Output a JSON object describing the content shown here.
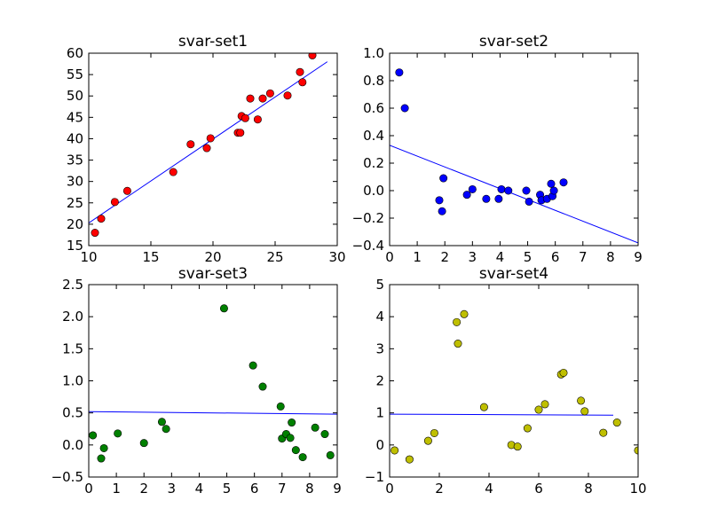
{
  "figure": {
    "background": "#ffffff",
    "line_color": "#0000ff"
  },
  "chart_data": [
    {
      "type": "scatter",
      "title": "svar-set1",
      "xlabel": "",
      "ylabel": "",
      "xlim": [
        10,
        30
      ],
      "ylim": [
        15,
        60
      ],
      "xticks": [
        "10",
        "15",
        "20",
        "25",
        "30"
      ],
      "yticks": [
        "15",
        "20",
        "25",
        "30",
        "35",
        "40",
        "45",
        "50",
        "55",
        "60"
      ],
      "grid": false,
      "marker_color": "#ff0000",
      "points": [
        [
          10.5,
          18.0
        ],
        [
          11.0,
          21.3
        ],
        [
          12.1,
          25.2
        ],
        [
          13.1,
          27.8
        ],
        [
          16.8,
          32.2
        ],
        [
          18.2,
          38.7
        ],
        [
          19.5,
          37.8
        ],
        [
          19.8,
          40.1
        ],
        [
          22.0,
          41.4
        ],
        [
          22.2,
          41.4
        ],
        [
          22.3,
          45.3
        ],
        [
          22.6,
          44.8
        ],
        [
          23.0,
          49.4
        ],
        [
          23.6,
          44.5
        ],
        [
          24.0,
          49.4
        ],
        [
          24.6,
          50.6
        ],
        [
          26.0,
          50.1
        ],
        [
          27.0,
          55.6
        ],
        [
          27.2,
          53.2
        ],
        [
          28.0,
          59.5
        ]
      ],
      "fit_line": [
        [
          10.0,
          20.3
        ],
        [
          29.2,
          58.0
        ]
      ]
    },
    {
      "type": "scatter",
      "title": "svar-set2",
      "xlabel": "",
      "ylabel": "",
      "xlim": [
        0,
        9
      ],
      "ylim": [
        -0.4,
        1.0
      ],
      "xticks": [
        "0",
        "1",
        "2",
        "3",
        "4",
        "5",
        "6",
        "7",
        "8",
        "9"
      ],
      "yticks": [
        "−0.4",
        "−0.2",
        "0.0",
        "0.2",
        "0.4",
        "0.6",
        "0.8",
        "1.0"
      ],
      "grid": false,
      "marker_color": "#0000ff",
      "points": [
        [
          0.35,
          0.86
        ],
        [
          0.55,
          0.6
        ],
        [
          1.8,
          -0.07
        ],
        [
          1.9,
          -0.15
        ],
        [
          1.95,
          0.09
        ],
        [
          2.8,
          -0.03
        ],
        [
          3.0,
          0.01
        ],
        [
          3.5,
          -0.06
        ],
        [
          3.95,
          -0.06
        ],
        [
          4.05,
          0.01
        ],
        [
          4.3,
          0.0
        ],
        [
          4.95,
          0.0
        ],
        [
          5.05,
          -0.08
        ],
        [
          5.45,
          -0.03
        ],
        [
          5.5,
          -0.07
        ],
        [
          5.7,
          -0.06
        ],
        [
          5.85,
          0.05
        ],
        [
          5.9,
          -0.04
        ],
        [
          5.95,
          0.0
        ],
        [
          6.3,
          0.06
        ]
      ],
      "fit_line": [
        [
          0.0,
          0.33
        ],
        [
          9.0,
          -0.38
        ]
      ]
    },
    {
      "type": "scatter",
      "title": "svar-set3",
      "xlabel": "",
      "ylabel": "",
      "xlim": [
        0,
        9
      ],
      "ylim": [
        -0.5,
        2.5
      ],
      "xticks": [
        "0",
        "1",
        "2",
        "3",
        "4",
        "5",
        "6",
        "7",
        "8",
        "9"
      ],
      "yticks": [
        "−0.5",
        "0.0",
        "0.5",
        "1.0",
        "1.5",
        "2.0",
        "2.5"
      ],
      "grid": false,
      "marker_color": "#008000",
      "points": [
        [
          0.15,
          0.15
        ],
        [
          0.45,
          -0.21
        ],
        [
          0.55,
          -0.05
        ],
        [
          1.05,
          0.18
        ],
        [
          2.0,
          0.03
        ],
        [
          2.65,
          0.36
        ],
        [
          2.8,
          0.25
        ],
        [
          4.9,
          2.13
        ],
        [
          5.95,
          1.24
        ],
        [
          6.3,
          0.91
        ],
        [
          6.95,
          0.6
        ],
        [
          7.0,
          0.1
        ],
        [
          7.15,
          0.17
        ],
        [
          7.3,
          0.11
        ],
        [
          7.35,
          0.35
        ],
        [
          7.5,
          -0.08
        ],
        [
          7.75,
          -0.19
        ],
        [
          8.2,
          0.27
        ],
        [
          8.55,
          0.17
        ],
        [
          8.75,
          -0.16
        ]
      ],
      "fit_line": [
        [
          0.0,
          0.52
        ],
        [
          9.0,
          0.48
        ]
      ]
    },
    {
      "type": "scatter",
      "title": "svar-set4",
      "xlabel": "",
      "ylabel": "",
      "xlim": [
        0,
        10
      ],
      "ylim": [
        -1,
        5
      ],
      "xticks": [
        "0",
        "2",
        "4",
        "6",
        "8",
        "10"
      ],
      "yticks": [
        "−1",
        "0",
        "1",
        "2",
        "3",
        "4",
        "5"
      ],
      "grid": false,
      "marker_color": "#bfbf00",
      "points": [
        [
          0.2,
          -0.17
        ],
        [
          0.8,
          -0.45
        ],
        [
          1.55,
          0.13
        ],
        [
          1.8,
          0.37
        ],
        [
          2.7,
          3.83
        ],
        [
          2.75,
          3.16
        ],
        [
          3.0,
          4.08
        ],
        [
          3.8,
          1.18
        ],
        [
          4.9,
          0.0
        ],
        [
          5.15,
          -0.05
        ],
        [
          5.55,
          0.52
        ],
        [
          6.0,
          1.1
        ],
        [
          6.25,
          1.27
        ],
        [
          6.9,
          2.2
        ],
        [
          7.0,
          2.25
        ],
        [
          7.7,
          1.38
        ],
        [
          7.85,
          1.05
        ],
        [
          8.6,
          0.38
        ],
        [
          9.15,
          0.7
        ],
        [
          10.0,
          -0.17
        ]
      ],
      "fit_line": [
        [
          0.0,
          0.96
        ],
        [
          9.0,
          0.93
        ]
      ]
    }
  ]
}
